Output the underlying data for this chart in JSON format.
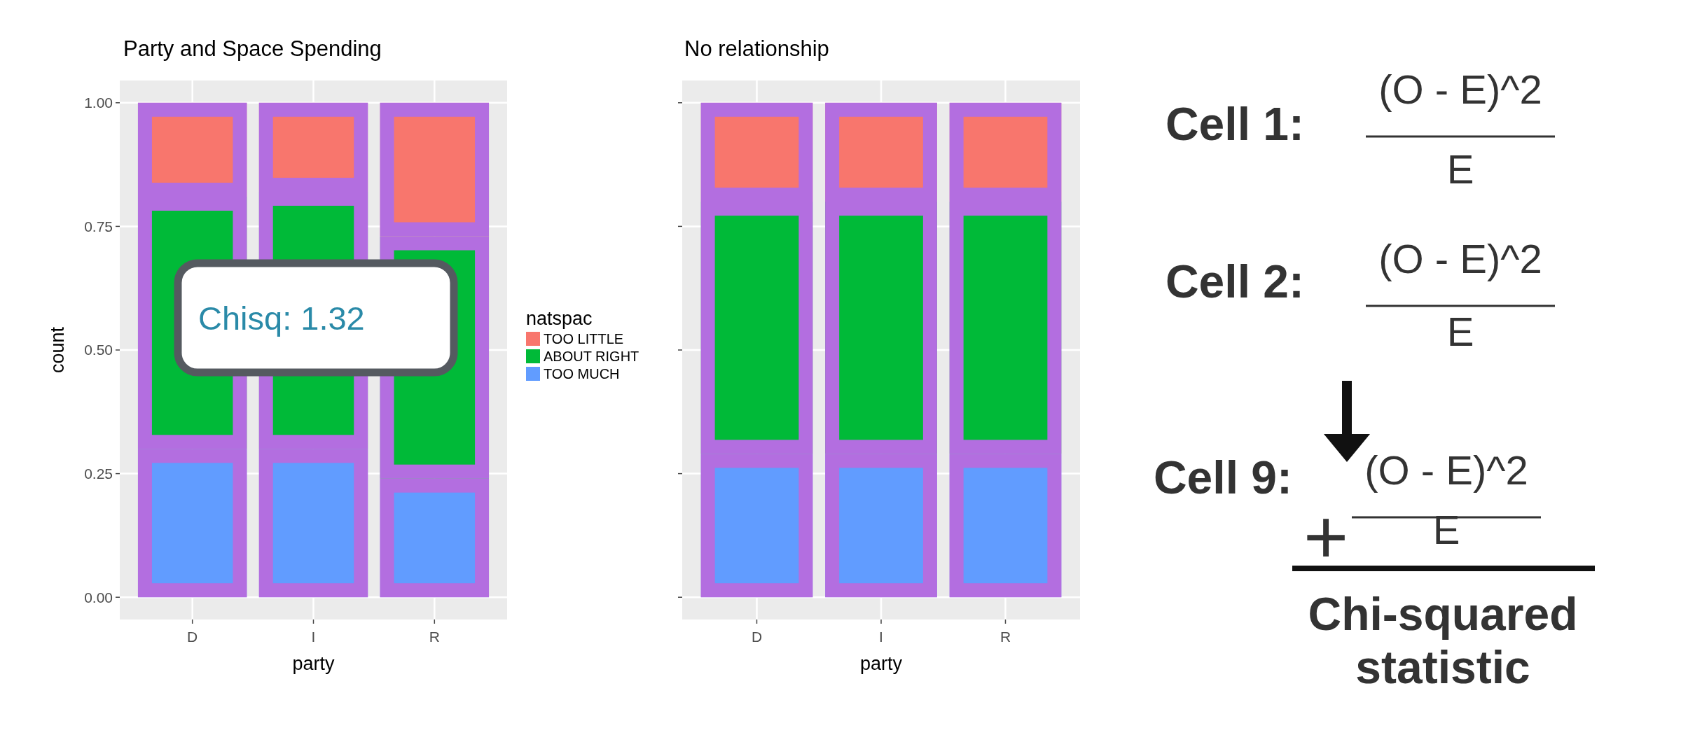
{
  "chart_data": [
    {
      "type": "bar",
      "title": "Party and Space Spending",
      "xlabel": "party",
      "ylabel": "count",
      "legend_title": "natspac",
      "categories": [
        "D",
        "I",
        "R"
      ],
      "stacked": true,
      "series": [
        {
          "name": "TOO MUCH",
          "color": "#619cff",
          "values": [
            0.3,
            0.3,
            0.24
          ]
        },
        {
          "name": "ABOUT RIGHT",
          "color": "#00ba38",
          "values": [
            0.51,
            0.52,
            0.49
          ]
        },
        {
          "name": "TOO LITTLE",
          "color": "#f8766d",
          "values": [
            0.19,
            0.18,
            0.27
          ]
        }
      ],
      "ylim": [
        -0.045,
        1.045
      ],
      "yticks": [
        {
          "value": 0,
          "label": "0.00"
        },
        {
          "value": 0.25,
          "label": "0.25"
        },
        {
          "value": 0.5,
          "label": "0.50"
        },
        {
          "value": 0.75,
          "label": "0.75"
        },
        {
          "value": 1,
          "label": "1.00"
        }
      ],
      "grid": true,
      "legend": "right",
      "annotations": [
        "Chisq: 1.32"
      ]
    },
    {
      "type": "bar",
      "title": "No relationship",
      "xlabel": "party",
      "categories": [
        "D",
        "I",
        "R"
      ],
      "stacked": true,
      "series": [
        {
          "color": "#619cff",
          "values": [
            0.29,
            0.29,
            0.29
          ]
        },
        {
          "color": "#00ba38",
          "values": [
            0.51,
            0.51,
            0.51
          ]
        },
        {
          "color": "#f8766d",
          "values": [
            0.2,
            0.2,
            0.2
          ]
        }
      ],
      "ylim": [
        -0.045,
        1.045
      ],
      "yticks": [
        {
          "value": 0,
          "label": null
        },
        {
          "value": 0.25,
          "label": null
        },
        {
          "value": 0.5,
          "label": null
        },
        {
          "value": 0.75,
          "label": null
        },
        {
          "value": 1,
          "label": null
        }
      ],
      "tick_labels": "x",
      "grid": true
    },
    {
      "type": "other",
      "annotations": [
        "Cell 1:",
        "(O - E)^2",
        "E",
        "Cell 2:",
        "(O - E)^2",
        "E",
        "Cell 9:",
        "(O - E)^2",
        "E",
        "+",
        "Chi-squared",
        "statistic"
      ]
    }
  ]
}
